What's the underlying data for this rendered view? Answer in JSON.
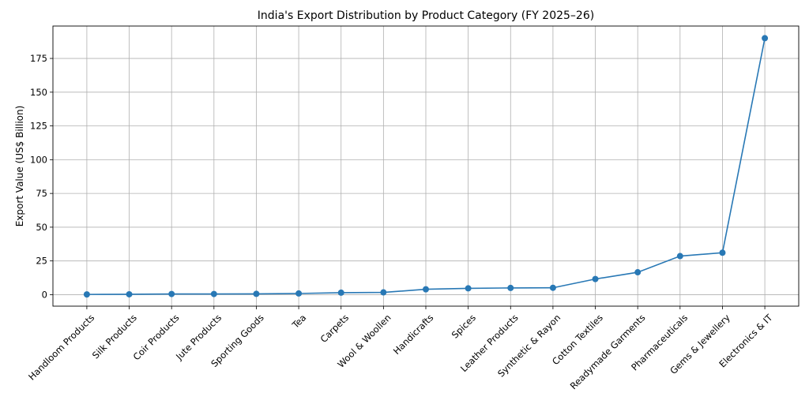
{
  "chart_data": {
    "type": "line",
    "title": "India's Export Distribution by Product Category (FY 2025–26)",
    "xlabel": "",
    "ylabel": "Export Value (US$ Billion)",
    "ylim": [
      -8.5,
      199
    ],
    "yticks": [
      0,
      25,
      50,
      75,
      100,
      125,
      150,
      175
    ],
    "grid": true,
    "categories": [
      "Handloom Products",
      "Silk Products",
      "Coir Products",
      "Jute Products",
      "Sporting Goods",
      "Tea",
      "Carpets",
      "Wool & Woollen",
      "Handicrafts",
      "Spices",
      "Leather Products",
      "Synthetic & Rayon",
      "Cotton Textiles",
      "Readymade Garments",
      "Pharmaceuticals",
      "Gems & Jewellery",
      "Electronics & IT"
    ],
    "series": [
      {
        "color": "#2878b5",
        "values": [
          0.2,
          0.3,
          0.5,
          0.5,
          0.6,
          0.9,
          1.5,
          1.7,
          4.0,
          4.7,
          5.0,
          5.1,
          11.6,
          16.6,
          28.6,
          31.1,
          190.0
        ]
      }
    ]
  }
}
